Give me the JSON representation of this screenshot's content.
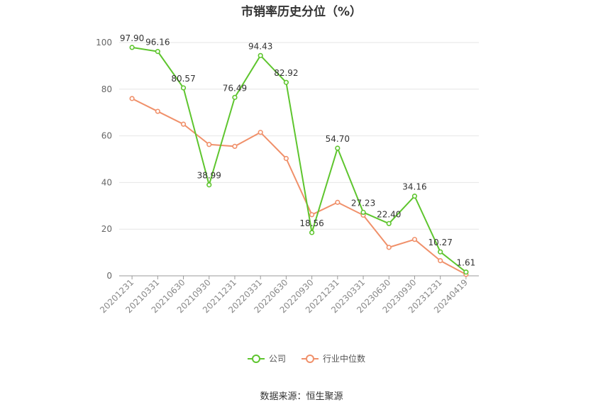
{
  "chart_data": {
    "type": "line",
    "title": "市销率历史分位（%）",
    "categories": [
      "20201231",
      "20210331",
      "20210630",
      "20210930",
      "20211231",
      "20220331",
      "20220630",
      "20220930",
      "20221231",
      "20230331",
      "20230630",
      "20230930",
      "20231231",
      "20240419"
    ],
    "series": [
      {
        "name": "公司",
        "color": "#5ec52e",
        "show_labels": true,
        "values": [
          97.9,
          96.16,
          80.57,
          38.99,
          76.49,
          94.43,
          82.92,
          18.56,
          54.7,
          27.23,
          22.4,
          34.16,
          10.27,
          1.61
        ]
      },
      {
        "name": "行业中位数",
        "color": "#f0906a",
        "show_labels": false,
        "values": [
          76.0,
          70.5,
          65.0,
          56.3,
          55.5,
          61.5,
          50.3,
          26.2,
          31.5,
          26.0,
          12.2,
          15.6,
          6.5,
          0.6
        ]
      }
    ],
    "ylim": [
      0,
      100
    ],
    "yticks": [
      0,
      20,
      40,
      60,
      80,
      100
    ],
    "grid": true,
    "legend_position": "bottom-center"
  },
  "source": "数据来源：恒生聚源"
}
